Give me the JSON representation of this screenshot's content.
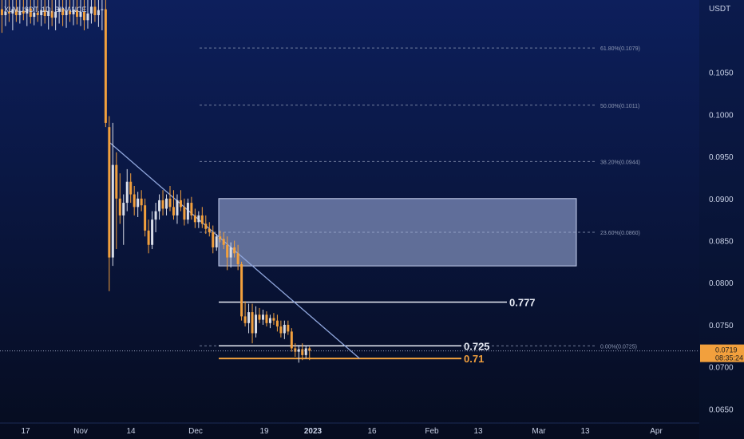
{
  "chart_data": {
    "type": "candlestick",
    "title": "XLMUSDT, 1D, BINANCE",
    "currency": "USDT",
    "colors": {
      "bg_top": "#0d1f5c",
      "bg_bottom": "#060c1f",
      "up": "#d9dde8",
      "down": "#f2a03d",
      "trendline": "#8fa6dc",
      "zone_fill": "#a8b8e6",
      "zone_stroke": "#c8d2f0",
      "fib_line": "#8c97b3",
      "level_white": "#e8ecf5",
      "level_orange": "#f2a03d",
      "price_tag": "#f2a03d"
    },
    "y_axis": {
      "ticks": [
        "0.1050",
        "0.1000",
        "0.0950",
        "0.0900",
        "0.0850",
        "0.0800",
        "0.0750",
        "0.0700",
        "0.0650"
      ],
      "ylim": [
        0.0638,
        0.1136
      ]
    },
    "x_axis": {
      "ticks": [
        "17",
        "Nov",
        "14",
        "Dec",
        "19",
        "2023",
        "16",
        "Feb",
        "13",
        "Mar",
        "13",
        "Apr"
      ],
      "bold_tick": "2023"
    },
    "fib_levels": [
      {
        "label": "61.80%(0.1079)",
        "value": 0.1079
      },
      {
        "label": "50.00%(0.1011)",
        "value": 0.1011
      },
      {
        "label": "38.20%(0.0944)",
        "value": 0.0944
      },
      {
        "label": "23.60%(0.0860)",
        "value": 0.086
      },
      {
        "label": "0.00%(0.0725)",
        "value": 0.0725
      }
    ],
    "zone": {
      "top": 0.09,
      "bottom": 0.082
    },
    "levels": [
      {
        "label": "0.777",
        "value": 0.0777,
        "color": "white"
      },
      {
        "label": "0.725",
        "value": 0.0725,
        "color": "white"
      },
      {
        "label": "0.71",
        "value": 0.071,
        "color": "orange"
      }
    ],
    "current_price": {
      "value": "0.0719",
      "countdown": "08:35:24"
    },
    "trendline": {
      "from": {
        "x": "Nov 09",
        "y": 0.0967
      },
      "to": {
        "x": "Jan 18",
        "y": 0.071
      }
    },
    "candles": [
      {
        "date": "Oct 10",
        "o": 0.1125,
        "h": 0.1136,
        "l": 0.1097,
        "c": 0.1118
      },
      {
        "date": "Oct 11",
        "o": 0.1118,
        "h": 0.1136,
        "l": 0.1105,
        "c": 0.1122
      },
      {
        "date": "Oct 12",
        "o": 0.1122,
        "h": 0.1136,
        "l": 0.111,
        "c": 0.112
      },
      {
        "date": "Oct 13",
        "o": 0.112,
        "h": 0.1136,
        "l": 0.11,
        "c": 0.1125
      },
      {
        "date": "Oct 14",
        "o": 0.1125,
        "h": 0.1136,
        "l": 0.111,
        "c": 0.1118
      },
      {
        "date": "Oct 15",
        "o": 0.1118,
        "h": 0.1136,
        "l": 0.1108,
        "c": 0.1123
      },
      {
        "date": "Oct 16",
        "o": 0.1123,
        "h": 0.1136,
        "l": 0.1112,
        "c": 0.112
      },
      {
        "date": "Oct 17",
        "o": 0.112,
        "h": 0.1136,
        "l": 0.1105,
        "c": 0.1126
      },
      {
        "date": "Oct 18",
        "o": 0.1126,
        "h": 0.1136,
        "l": 0.1108,
        "c": 0.1116
      },
      {
        "date": "Oct 19",
        "o": 0.1116,
        "h": 0.1136,
        "l": 0.1106,
        "c": 0.1121
      },
      {
        "date": "Oct 20",
        "o": 0.1121,
        "h": 0.1136,
        "l": 0.111,
        "c": 0.1118
      },
      {
        "date": "Oct 21",
        "o": 0.1118,
        "h": 0.1136,
        "l": 0.1105,
        "c": 0.1124
      },
      {
        "date": "Oct 22",
        "o": 0.1124,
        "h": 0.1136,
        "l": 0.1108,
        "c": 0.1117
      },
      {
        "date": "Oct 23",
        "o": 0.1117,
        "h": 0.1136,
        "l": 0.1101,
        "c": 0.1123
      },
      {
        "date": "Oct 24",
        "o": 0.1123,
        "h": 0.1136,
        "l": 0.1105,
        "c": 0.1115
      },
      {
        "date": "Oct 25",
        "o": 0.1115,
        "h": 0.1136,
        "l": 0.11,
        "c": 0.1122
      },
      {
        "date": "Oct 26",
        "o": 0.1122,
        "h": 0.1136,
        "l": 0.1108,
        "c": 0.1126
      },
      {
        "date": "Oct 27",
        "o": 0.1126,
        "h": 0.1136,
        "l": 0.1105,
        "c": 0.1118
      },
      {
        "date": "Oct 28",
        "o": 0.1118,
        "h": 0.1136,
        "l": 0.1103,
        "c": 0.1123
      },
      {
        "date": "Oct 29",
        "o": 0.1123,
        "h": 0.1136,
        "l": 0.111,
        "c": 0.1119
      },
      {
        "date": "Oct 30",
        "o": 0.1119,
        "h": 0.1136,
        "l": 0.1106,
        "c": 0.1124
      },
      {
        "date": "Oct 31",
        "o": 0.1124,
        "h": 0.1136,
        "l": 0.1107,
        "c": 0.1116
      },
      {
        "date": "Nov 01",
        "o": 0.1116,
        "h": 0.1136,
        "l": 0.1105,
        "c": 0.1122
      },
      {
        "date": "Nov 02",
        "o": 0.1122,
        "h": 0.1136,
        "l": 0.11,
        "c": 0.1112
      },
      {
        "date": "Nov 03",
        "o": 0.1112,
        "h": 0.1136,
        "l": 0.1102,
        "c": 0.112
      },
      {
        "date": "Nov 04",
        "o": 0.112,
        "h": 0.1136,
        "l": 0.1108,
        "c": 0.1128
      },
      {
        "date": "Nov 05",
        "o": 0.1128,
        "h": 0.1136,
        "l": 0.111,
        "c": 0.1118
      },
      {
        "date": "Nov 06",
        "o": 0.1118,
        "h": 0.1136,
        "l": 0.1104,
        "c": 0.1124
      },
      {
        "date": "Nov 07",
        "o": 0.1124,
        "h": 0.1136,
        "l": 0.11,
        "c": 0.1125
      },
      {
        "date": "Nov 08",
        "o": 0.1125,
        "h": 0.1136,
        "l": 0.0985,
        "c": 0.099
      },
      {
        "date": "Nov 09",
        "o": 0.0985,
        "h": 0.0998,
        "l": 0.079,
        "c": 0.083
      },
      {
        "date": "Nov 10",
        "o": 0.083,
        "h": 0.099,
        "l": 0.082,
        "c": 0.094
      },
      {
        "date": "Nov 11",
        "o": 0.094,
        "h": 0.0955,
        "l": 0.084,
        "c": 0.09
      },
      {
        "date": "Nov 12",
        "o": 0.09,
        "h": 0.093,
        "l": 0.087,
        "c": 0.088
      },
      {
        "date": "Nov 13",
        "o": 0.088,
        "h": 0.0905,
        "l": 0.0845,
        "c": 0.0895
      },
      {
        "date": "Nov 14",
        "o": 0.0895,
        "h": 0.0935,
        "l": 0.0885,
        "c": 0.092
      },
      {
        "date": "Nov 15",
        "o": 0.092,
        "h": 0.093,
        "l": 0.0895,
        "c": 0.0905
      },
      {
        "date": "Nov 16",
        "o": 0.0905,
        "h": 0.0915,
        "l": 0.088,
        "c": 0.089
      },
      {
        "date": "Nov 17",
        "o": 0.089,
        "h": 0.0908,
        "l": 0.0878,
        "c": 0.09
      },
      {
        "date": "Nov 18",
        "o": 0.09,
        "h": 0.091,
        "l": 0.0885,
        "c": 0.0892
      },
      {
        "date": "Nov 19",
        "o": 0.0892,
        "h": 0.09,
        "l": 0.0855,
        "c": 0.0862
      },
      {
        "date": "Nov 20",
        "o": 0.0862,
        "h": 0.0875,
        "l": 0.0835,
        "c": 0.0845
      },
      {
        "date": "Nov 21",
        "o": 0.0845,
        "h": 0.0885,
        "l": 0.084,
        "c": 0.0875
      },
      {
        "date": "Nov 22",
        "o": 0.0875,
        "h": 0.0895,
        "l": 0.086,
        "c": 0.0885
      },
      {
        "date": "Nov 23",
        "o": 0.0885,
        "h": 0.0905,
        "l": 0.0875,
        "c": 0.0898
      },
      {
        "date": "Nov 24",
        "o": 0.0898,
        "h": 0.091,
        "l": 0.088,
        "c": 0.0888
      },
      {
        "date": "Nov 25",
        "o": 0.0888,
        "h": 0.0905,
        "l": 0.088,
        "c": 0.09
      },
      {
        "date": "Nov 26",
        "o": 0.09,
        "h": 0.0915,
        "l": 0.0885,
        "c": 0.089
      },
      {
        "date": "Nov 27",
        "o": 0.089,
        "h": 0.091,
        "l": 0.0875,
        "c": 0.088
      },
      {
        "date": "Nov 28",
        "o": 0.088,
        "h": 0.0905,
        "l": 0.087,
        "c": 0.0898
      },
      {
        "date": "Nov 29",
        "o": 0.0898,
        "h": 0.091,
        "l": 0.0885,
        "c": 0.089
      },
      {
        "date": "Nov 30",
        "o": 0.089,
        "h": 0.09,
        "l": 0.0868,
        "c": 0.0875
      },
      {
        "date": "Dec 01",
        "o": 0.0875,
        "h": 0.09,
        "l": 0.087,
        "c": 0.0895
      },
      {
        "date": "Dec 02",
        "o": 0.0895,
        "h": 0.0902,
        "l": 0.0875,
        "c": 0.088
      },
      {
        "date": "Dec 03",
        "o": 0.088,
        "h": 0.0888,
        "l": 0.0865,
        "c": 0.0872
      },
      {
        "date": "Dec 04",
        "o": 0.0872,
        "h": 0.0885,
        "l": 0.0865,
        "c": 0.088
      },
      {
        "date": "Dec 05",
        "o": 0.088,
        "h": 0.089,
        "l": 0.0865,
        "c": 0.087
      },
      {
        "date": "Dec 06",
        "o": 0.087,
        "h": 0.088,
        "l": 0.0858,
        "c": 0.0864
      },
      {
        "date": "Dec 07",
        "o": 0.0864,
        "h": 0.0872,
        "l": 0.0855,
        "c": 0.086
      },
      {
        "date": "Dec 08",
        "o": 0.086,
        "h": 0.0868,
        "l": 0.0835,
        "c": 0.0842
      },
      {
        "date": "Dec 09",
        "o": 0.0842,
        "h": 0.0858,
        "l": 0.0838,
        "c": 0.0855
      },
      {
        "date": "Dec 10",
        "o": 0.0855,
        "h": 0.0862,
        "l": 0.0848,
        "c": 0.0852
      },
      {
        "date": "Dec 11",
        "o": 0.0852,
        "h": 0.086,
        "l": 0.084,
        "c": 0.0845
      },
      {
        "date": "Dec 12",
        "o": 0.0845,
        "h": 0.0855,
        "l": 0.0815,
        "c": 0.083
      },
      {
        "date": "Dec 13",
        "o": 0.083,
        "h": 0.0848,
        "l": 0.0818,
        "c": 0.0842
      },
      {
        "date": "Dec 14",
        "o": 0.0842,
        "h": 0.085,
        "l": 0.083,
        "c": 0.0835
      },
      {
        "date": "Dec 15",
        "o": 0.0835,
        "h": 0.0845,
        "l": 0.0815,
        "c": 0.0822
      },
      {
        "date": "Dec 16",
        "o": 0.0822,
        "h": 0.0825,
        "l": 0.0755,
        "c": 0.076
      },
      {
        "date": "Dec 17",
        "o": 0.076,
        "h": 0.0778,
        "l": 0.0748,
        "c": 0.0752
      },
      {
        "date": "Dec 18",
        "o": 0.0752,
        "h": 0.0775,
        "l": 0.074,
        "c": 0.0765
      },
      {
        "date": "Dec 19",
        "o": 0.0765,
        "h": 0.0775,
        "l": 0.0728,
        "c": 0.074
      },
      {
        "date": "Dec 20",
        "o": 0.074,
        "h": 0.0772,
        "l": 0.0735,
        "c": 0.0762
      },
      {
        "date": "Dec 21",
        "o": 0.0762,
        "h": 0.077,
        "l": 0.0752,
        "c": 0.0756
      },
      {
        "date": "Dec 22",
        "o": 0.0756,
        "h": 0.0768,
        "l": 0.075,
        "c": 0.0762
      },
      {
        "date": "Dec 23",
        "o": 0.0762,
        "h": 0.0766,
        "l": 0.0748,
        "c": 0.0752
      },
      {
        "date": "Dec 24",
        "o": 0.0752,
        "h": 0.0762,
        "l": 0.0746,
        "c": 0.0758
      },
      {
        "date": "Dec 25",
        "o": 0.0758,
        "h": 0.0764,
        "l": 0.075,
        "c": 0.0755
      },
      {
        "date": "Dec 26",
        "o": 0.0755,
        "h": 0.0762,
        "l": 0.0742,
        "c": 0.0748
      },
      {
        "date": "Dec 27",
        "o": 0.0748,
        "h": 0.0755,
        "l": 0.0735,
        "c": 0.074
      },
      {
        "date": "Dec 28",
        "o": 0.074,
        "h": 0.0755,
        "l": 0.0733,
        "c": 0.075
      },
      {
        "date": "Dec 29",
        "o": 0.075,
        "h": 0.0755,
        "l": 0.0738,
        "c": 0.0742
      },
      {
        "date": "Dec 30",
        "o": 0.0742,
        "h": 0.0746,
        "l": 0.0718,
        "c": 0.0722
      },
      {
        "date": "Dec 31",
        "o": 0.0722,
        "h": 0.0728,
        "l": 0.0712,
        "c": 0.0718
      },
      {
        "date": "Jan 01",
        "o": 0.0718,
        "h": 0.0726,
        "l": 0.0705,
        "c": 0.0721
      },
      {
        "date": "Jan 02",
        "o": 0.0721,
        "h": 0.0728,
        "l": 0.0708,
        "c": 0.0714
      },
      {
        "date": "Jan 03",
        "o": 0.0714,
        "h": 0.0725,
        "l": 0.071,
        "c": 0.0722
      },
      {
        "date": "Jan 04",
        "o": 0.0722,
        "h": 0.0724,
        "l": 0.0708,
        "c": 0.0719
      }
    ]
  }
}
